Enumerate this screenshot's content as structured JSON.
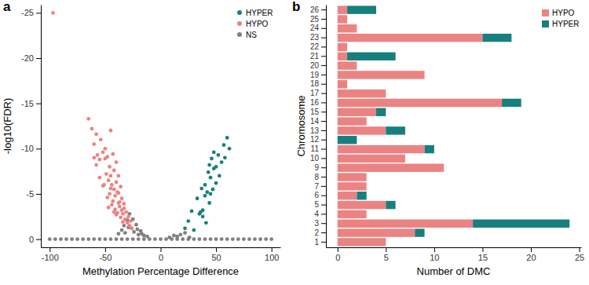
{
  "chart_data": [
    {
      "type": "scatter",
      "title": "a",
      "x_label": "Methylation Percentage Difference",
      "y_label": "-log10(FDR)",
      "xlim": [
        -108,
        108
      ],
      "xticks": [
        -100,
        -50,
        0,
        50,
        100
      ],
      "ylim": [
        0.9,
        -25.9
      ],
      "yticks": [
        0,
        -5,
        -10,
        -15,
        -20,
        -25
      ],
      "grid": false,
      "legend": "top-right",
      "marker": "circle",
      "series": [
        {
          "name": "HYPER",
          "color": "#17807e",
          "x": [
            22,
            25,
            28,
            30,
            33,
            35,
            37,
            38,
            40,
            40,
            42,
            43,
            44,
            45,
            45,
            46,
            47,
            48,
            48,
            50,
            50,
            52,
            53,
            55,
            57,
            58,
            60,
            62,
            41,
            36,
            38,
            44
          ],
          "values": [
            -1.2,
            -2.0,
            -3.1,
            -1.0,
            -4.5,
            -2.8,
            -5.6,
            -3.2,
            -6.0,
            -4.8,
            -5.2,
            -7.4,
            -8.2,
            -5.0,
            -6.8,
            -8.9,
            -5.5,
            -7.8,
            -9.6,
            -8.0,
            -6.2,
            -9.3,
            -7.0,
            -8.5,
            -10.4,
            -9.0,
            -11.2,
            -10.0,
            -1.8,
            -3.0,
            -2.5,
            -4.0
          ]
        },
        {
          "name": "HYPO",
          "color": "#ec8383",
          "x": [
            -97,
            -65,
            -62,
            -60,
            -58,
            -57,
            -55,
            -54,
            -52,
            -50,
            -50,
            -49,
            -48,
            -47,
            -46,
            -45,
            -45,
            -44,
            -43,
            -42,
            -42,
            -41,
            -40,
            -40,
            -39,
            -38,
            -38,
            -37,
            -36,
            -35,
            -35,
            -34,
            -33,
            -32,
            -31,
            -30,
            -29,
            -28,
            -27,
            -26,
            -55,
            -52,
            -48,
            -46,
            -44,
            -43,
            -41,
            -39,
            -37,
            -36,
            -60,
            -58,
            -51,
            -47,
            -45,
            -42,
            -40,
            -38,
            -34,
            -33
          ],
          "values": [
            -25,
            -13.3,
            -12.2,
            -9.0,
            -11.6,
            -9.3,
            -8.8,
            -11.0,
            -9.6,
            -8.9,
            -10.0,
            -7.2,
            -9.1,
            -6.5,
            -8.0,
            -7.0,
            -12.0,
            -6.0,
            -9.4,
            -5.5,
            -7.6,
            -4.8,
            -6.3,
            -8.5,
            -5.2,
            -4.0,
            -7.0,
            -3.6,
            -5.8,
            -3.2,
            -4.5,
            -2.8,
            -3.9,
            -2.2,
            -3.0,
            -1.8,
            -2.5,
            -1.5,
            -2.0,
            -1.2,
            -6.8,
            -5.9,
            -4.6,
            -5.0,
            -3.8,
            -4.2,
            -3.3,
            -2.9,
            -4.1,
            -2.4,
            -10.5,
            -8.2,
            -6.0,
            -3.5,
            -5.6,
            -3.0,
            -2.7,
            -5.1,
            -1.9,
            -3.4
          ]
        },
        {
          "name": "NS",
          "color": "#808080",
          "x": [
            -100,
            -95,
            -90,
            -85,
            -80,
            -75,
            -70,
            -65,
            -60,
            -55,
            -50,
            -45,
            -40,
            -35,
            -30,
            -25,
            -20,
            -15,
            -10,
            -5,
            0,
            5,
            10,
            15,
            20,
            25,
            30,
            35,
            40,
            45,
            50,
            55,
            60,
            65,
            70,
            75,
            80,
            85,
            90,
            95,
            100,
            -38,
            -35,
            -33,
            -30,
            -28,
            -26,
            -24,
            -22,
            -20,
            -18,
            -15,
            -12,
            -32,
            -29,
            -25,
            -21,
            -17,
            8,
            12,
            15,
            18,
            22,
            26
          ],
          "values": [
            0,
            0,
            0,
            0,
            0,
            0,
            0,
            0,
            0,
            0,
            0,
            0,
            0,
            0,
            0,
            0,
            0,
            0,
            0,
            0,
            0,
            0,
            0,
            0,
            0,
            0,
            0,
            0,
            0,
            0,
            0,
            0,
            0,
            0,
            0,
            0,
            0,
            0,
            0,
            0,
            0,
            -0.6,
            -1.0,
            -1.5,
            -2.1,
            -2.8,
            -1.2,
            -0.8,
            -1.6,
            -0.5,
            -0.9,
            -0.4,
            -0.3,
            -0.7,
            -1.3,
            -2.2,
            -1.1,
            -0.6,
            -0.2,
            -0.4,
            -0.3,
            -0.5,
            -0.7,
            -0.2
          ]
        }
      ]
    },
    {
      "type": "bar",
      "title": "b",
      "orientation": "horizontal",
      "stacked": true,
      "x_label": "Number of DMC",
      "y_label": "Chromosome",
      "categories": [
        "1",
        "2",
        "3",
        "4",
        "5",
        "6",
        "7",
        "8",
        "9",
        "10",
        "11",
        "12",
        "13",
        "14",
        "15",
        "16",
        "17",
        "18",
        "19",
        "20",
        "21",
        "22",
        "23",
        "24",
        "25",
        "26"
      ],
      "xlim": [
        -1.2,
        25.2
      ],
      "xticks": [
        0,
        5,
        10,
        15,
        20,
        25
      ],
      "grid": false,
      "legend": "top-right",
      "series": [
        {
          "name": "HYPO",
          "color": "#ec8383",
          "values": [
            5,
            8,
            14,
            3,
            5,
            2,
            3,
            3,
            11,
            7,
            9,
            0,
            5,
            3,
            4,
            17,
            5,
            1,
            9,
            2,
            1,
            1,
            15,
            2,
            1,
            1
          ]
        },
        {
          "name": "HYPER",
          "color": "#17807e",
          "values": [
            0,
            1,
            10,
            0,
            1,
            1,
            0,
            0,
            0,
            0,
            1,
            2,
            2,
            0,
            1,
            2,
            0,
            0,
            0,
            0,
            5,
            0,
            3,
            0,
            0,
            3
          ]
        }
      ]
    }
  ]
}
